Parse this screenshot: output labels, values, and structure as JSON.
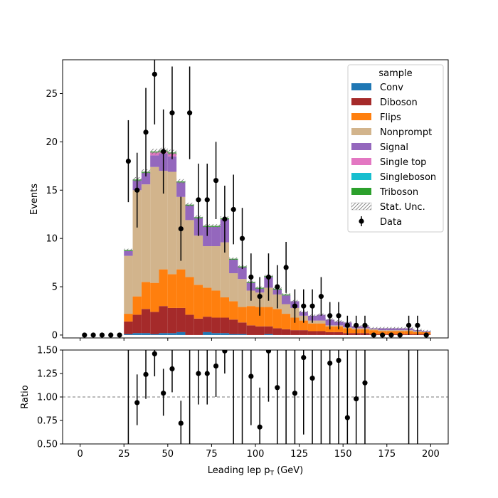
{
  "chart_data": {
    "type": "bar",
    "stacked": true,
    "xlabel": "Leading lep p",
    "xlabel_sub": "T",
    "xlabel_unit": "(GeV)",
    "ylabel": "Events",
    "ratio_ylabel": "Ratio",
    "xlim": [
      -10,
      210
    ],
    "ylim": [
      -0.3,
      28.5
    ],
    "ratio_ylim": [
      0.5,
      1.5
    ],
    "x_ticks": [
      0,
      25,
      50,
      75,
      100,
      125,
      150,
      175,
      200
    ],
    "y_ticks": [
      0,
      5,
      10,
      15,
      20,
      25
    ],
    "ratio_ticks": [
      "0.50",
      "0.75",
      "1.00",
      "1.25",
      "1.50"
    ],
    "bin_width": 5,
    "bin_edges_start": 0,
    "legend": {
      "title": "sample",
      "placement": "top-right",
      "unc_label": "Stat. Unc.",
      "data_label": "Data"
    },
    "series": [
      {
        "name": "Conv",
        "color": "#1f77b4",
        "values": [
          0,
          0,
          0,
          0,
          0,
          0.1,
          0.2,
          0.2,
          0.1,
          0.2,
          0.2,
          0.3,
          0,
          0,
          0.3,
          0.2,
          0.2,
          0.1,
          0.1,
          0,
          0,
          0.1,
          0,
          0,
          0,
          0,
          0,
          0,
          0,
          0,
          0,
          0,
          0,
          0,
          0,
          0,
          0,
          0,
          0,
          0
        ]
      },
      {
        "name": "Diboson",
        "color": "#a52a2a",
        "values": [
          0,
          0,
          0,
          0,
          0,
          1.3,
          1.9,
          2.5,
          2.3,
          2.8,
          2.6,
          2.5,
          2.1,
          1.7,
          1.6,
          1.6,
          1.6,
          1.5,
          1.2,
          1.0,
          0.9,
          0.8,
          0.7,
          0.6,
          0.5,
          0.5,
          0.4,
          0.4,
          0.3,
          0.3,
          0.2,
          0.2,
          0.2,
          0.1,
          0.1,
          0.1,
          0.1,
          0.1,
          0.1,
          0.1
        ]
      },
      {
        "name": "Flips",
        "color": "#ff7f0e",
        "values": [
          0,
          0,
          0,
          0,
          0,
          0.8,
          1.9,
          2.8,
          3.0,
          3.8,
          3.5,
          4.0,
          3.9,
          3.5,
          3.0,
          2.8,
          2.1,
          1.9,
          1.6,
          2.0,
          2.0,
          2.0,
          2.0,
          1.6,
          1.3,
          1.0,
          0.8,
          0.8,
          0.6,
          0.6,
          0.5,
          0.4,
          0.4,
          0.4,
          0.3,
          0.3,
          0.3,
          0.3,
          0.2,
          0.2
        ]
      },
      {
        "name": "Nonprompt",
        "color": "#d2b48c",
        "values": [
          0,
          0,
          0,
          0,
          0,
          6.0,
          11.0,
          10.1,
          12.0,
          10.2,
          10.6,
          7.5,
          5.9,
          5.1,
          4.3,
          4.6,
          5.7,
          2.9,
          2.9,
          1.6,
          1.5,
          2.0,
          1.5,
          1.0,
          1.0,
          0.5,
          0.3,
          0.3,
          0.1,
          0.1,
          0.1,
          0.1,
          0.1,
          0.1,
          0.1,
          0.1,
          0.1,
          0.1,
          0.1,
          0
        ]
      },
      {
        "name": "Signal",
        "color": "#9467bd",
        "values": [
          0,
          0,
          0,
          0,
          0,
          0.5,
          1.0,
          1.2,
          1.2,
          1.8,
          1.6,
          1.5,
          1.5,
          1.8,
          2.0,
          2.0,
          2.4,
          1.4,
          1.2,
          0.8,
          0.4,
          1.1,
          0.5,
          0.9,
          0.7,
          0.4,
          0.5,
          0.6,
          0.6,
          0.4,
          0.5,
          0.2,
          0.2,
          0.1,
          0.2,
          0.2,
          0.2,
          0.2,
          0.1,
          0.1
        ]
      },
      {
        "name": "Single top",
        "color": "#e377c2",
        "values": [
          0,
          0,
          0,
          0,
          0,
          0,
          0,
          0,
          0.3,
          0.2,
          0.3,
          0,
          0,
          0,
          0,
          0,
          0,
          0,
          0,
          0,
          0,
          0,
          0,
          0,
          0,
          0,
          0,
          0,
          0,
          0,
          0,
          0,
          0,
          0,
          0,
          0,
          0,
          0,
          0,
          0
        ]
      },
      {
        "name": "Singleboson",
        "color": "#17becf",
        "values": [
          0,
          0,
          0,
          0,
          0,
          0,
          0,
          0,
          0,
          0,
          0,
          0,
          0,
          0,
          0,
          0,
          0,
          0,
          0,
          0,
          0,
          0,
          0,
          0,
          0,
          0,
          0,
          0,
          0,
          0,
          0,
          0,
          0,
          0,
          0,
          0,
          0,
          0,
          0,
          0
        ]
      },
      {
        "name": "Triboson",
        "color": "#2ca02c",
        "values": [
          0,
          0,
          0,
          0,
          0,
          0.1,
          0.1,
          0.1,
          0.1,
          0.1,
          0.1,
          0.1,
          0.1,
          0.1,
          0.1,
          0.1,
          0.1,
          0.1,
          0.1,
          0.1,
          0.1,
          0.1,
          0.1,
          0.1,
          0,
          0,
          0,
          0,
          0,
          0,
          0,
          0,
          0,
          0,
          0,
          0,
          0,
          0,
          0,
          0
        ]
      }
    ],
    "data": {
      "name": "Data",
      "x": [
        2.5,
        7.5,
        12.5,
        17.5,
        22.5,
        27.5,
        32.5,
        37.5,
        42.5,
        47.5,
        52.5,
        57.5,
        62.5,
        67.5,
        72.5,
        77.5,
        82.5,
        87.5,
        92.5,
        97.5,
        102.5,
        107.5,
        112.5,
        117.5,
        122.5,
        127.5,
        132.5,
        137.5,
        142.5,
        147.5,
        152.5,
        157.5,
        162.5,
        167.5,
        172.5,
        177.5,
        182.5,
        187.5,
        192.5,
        197.5
      ],
      "y": [
        0,
        0,
        0,
        0,
        0,
        18,
        15,
        21,
        27,
        19,
        23,
        11,
        23,
        14,
        14,
        16,
        12,
        13,
        10,
        6,
        4,
        6,
        5,
        7,
        3,
        3,
        3,
        4,
        2,
        2,
        1,
        1,
        1,
        0,
        0,
        0,
        0,
        1,
        1,
        0
      ]
    },
    "ratio": {
      "x": [
        32.5,
        37.5,
        42.5,
        47.5,
        52.5,
        57.5,
        67.5,
        72.5,
        77.5,
        82.5,
        97.5,
        102.5,
        107.5,
        112.5,
        122.5,
        127.5,
        132.5,
        142.5,
        147.5,
        152.5,
        157.5,
        162.5
      ],
      "y": [
        0.94,
        1.24,
        1.46,
        1.04,
        1.3,
        0.72,
        1.25,
        1.25,
        1.33,
        1.49,
        1.22,
        0.68,
        1.49,
        1.1,
        1.04,
        1.42,
        1.2,
        1.36,
        1.39,
        0.78,
        0.98,
        1.15
      ],
      "lo": [
        0.7,
        0.98,
        1.22,
        0.8,
        1.05,
        0.5,
        0.92,
        0.92,
        1.0,
        1.25,
        0.7,
        0.32,
        0.95,
        0.5,
        0.48,
        0.6,
        0.5,
        0.4,
        0.3,
        0.1,
        0.2,
        0.3
      ],
      "hi": [
        1.24,
        1.56,
        1.72,
        1.3,
        1.57,
        0.96,
        1.62,
        1.62,
        1.7,
        1.78,
        1.8,
        1.1,
        2.0,
        1.75,
        1.8,
        2.0,
        2.0,
        2.0,
        2.0,
        2.0,
        2.0,
        2.0
      ],
      "outside_lines": [
        27.5,
        62.5,
        87.5,
        92.5,
        117.5,
        137.5,
        187.5,
        192.5
      ],
      "reference": 1.0
    }
  }
}
